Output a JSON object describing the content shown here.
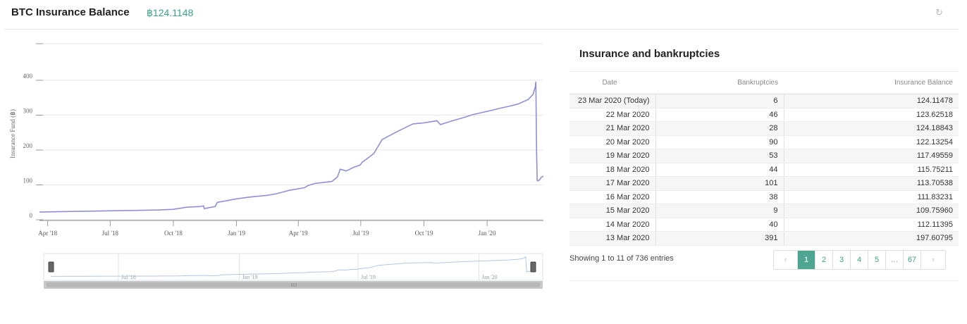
{
  "header": {
    "title": "BTC Insurance Balance",
    "balance": "฿124.1148",
    "refresh_icon": "refresh-icon"
  },
  "chart_data": {
    "type": "line",
    "title": "",
    "ylabel": "Insurance Fund (฿)",
    "xlabel": "",
    "ylim": [
      0,
      400
    ],
    "yticks": [
      0,
      100,
      200,
      300,
      400
    ],
    "xticks": [
      "Apr '18",
      "Jul '18",
      "Oct '18",
      "Jan '19",
      "Apr '19",
      "Jul '19",
      "Oct '19",
      "Jan '20"
    ],
    "navigator_ticks": [
      "Jul '18",
      "Jan '19",
      "Jul '19",
      "Jan '20"
    ],
    "line_color": "#8f8fd9",
    "series": [
      {
        "x": [
          "2018-03-20",
          "2018-04-15",
          "2018-05-15",
          "2018-06-15",
          "2018-07-15",
          "2018-08-15",
          "2018-09-10",
          "2018-10-01",
          "2018-10-20",
          "2018-11-10",
          "2018-11-14",
          "2018-11-15",
          "2018-12-01",
          "2018-12-04",
          "2019-01-01",
          "2019-01-20",
          "2019-02-15",
          "2019-03-01",
          "2019-03-20",
          "2019-04-10",
          "2019-04-15",
          "2019-04-25",
          "2019-05-20",
          "2019-05-28",
          "2019-06-01",
          "2019-06-10",
          "2019-06-20",
          "2019-06-30",
          "2019-07-03",
          "2019-07-10",
          "2019-07-20",
          "2019-08-01",
          "2019-08-20",
          "2019-08-25",
          "2019-09-10",
          "2019-09-15",
          "2019-10-01",
          "2019-10-20",
          "2019-10-25",
          "2019-11-10",
          "2019-12-01",
          "2019-12-10",
          "2020-01-10",
          "2020-01-20",
          "2020-02-01",
          "2020-02-15",
          "2020-03-01",
          "2020-03-08",
          "2020-03-11",
          "2020-03-12",
          "2020-03-13",
          "2020-03-14",
          "2020-03-16",
          "2020-03-18",
          "2020-03-20",
          "2020-03-22",
          "2020-03-23"
        ],
        "y": [
          22,
          23,
          24,
          25,
          26,
          27,
          28,
          30,
          36,
          38,
          40,
          32,
          38,
          50,
          60,
          65,
          70,
          75,
          85,
          92,
          98,
          104,
          110,
          123,
          145,
          140,
          150,
          157,
          165,
          175,
          190,
          230,
          250,
          255,
          270,
          275,
          278,
          284,
          273,
          283,
          295,
          301,
          315,
          320,
          325,
          332,
          345,
          360,
          380,
          396,
          197,
          112,
          112,
          116,
          122,
          124,
          124
        ]
      }
    ]
  },
  "table": {
    "title": "Insurance and bankruptcies",
    "columns": [
      "Date",
      "Bankruptcies",
      "Insurance Balance"
    ],
    "rows": [
      [
        "23 Mar 2020 (Today)",
        "6",
        "124.11478"
      ],
      [
        "22 Mar 2020",
        "46",
        "123.62518"
      ],
      [
        "21 Mar 2020",
        "28",
        "124.18843"
      ],
      [
        "20 Mar 2020",
        "90",
        "122.13254"
      ],
      [
        "19 Mar 2020",
        "53",
        "117.49559"
      ],
      [
        "18 Mar 2020",
        "44",
        "115.75211"
      ],
      [
        "17 Mar 2020",
        "101",
        "113.70538"
      ],
      [
        "16 Mar 2020",
        "38",
        "111.83231"
      ],
      [
        "15 Mar 2020",
        "9",
        "109.75960"
      ],
      [
        "14 Mar 2020",
        "40",
        "112.11395"
      ],
      [
        "13 Mar 2020",
        "391",
        "197.60795"
      ]
    ],
    "info": "Showing 1 to 11 of 736 entries",
    "pagination": {
      "prev": "‹",
      "pages": [
        "1",
        "2",
        "3",
        "4",
        "5",
        "…",
        "67"
      ],
      "next": "›"
    }
  }
}
